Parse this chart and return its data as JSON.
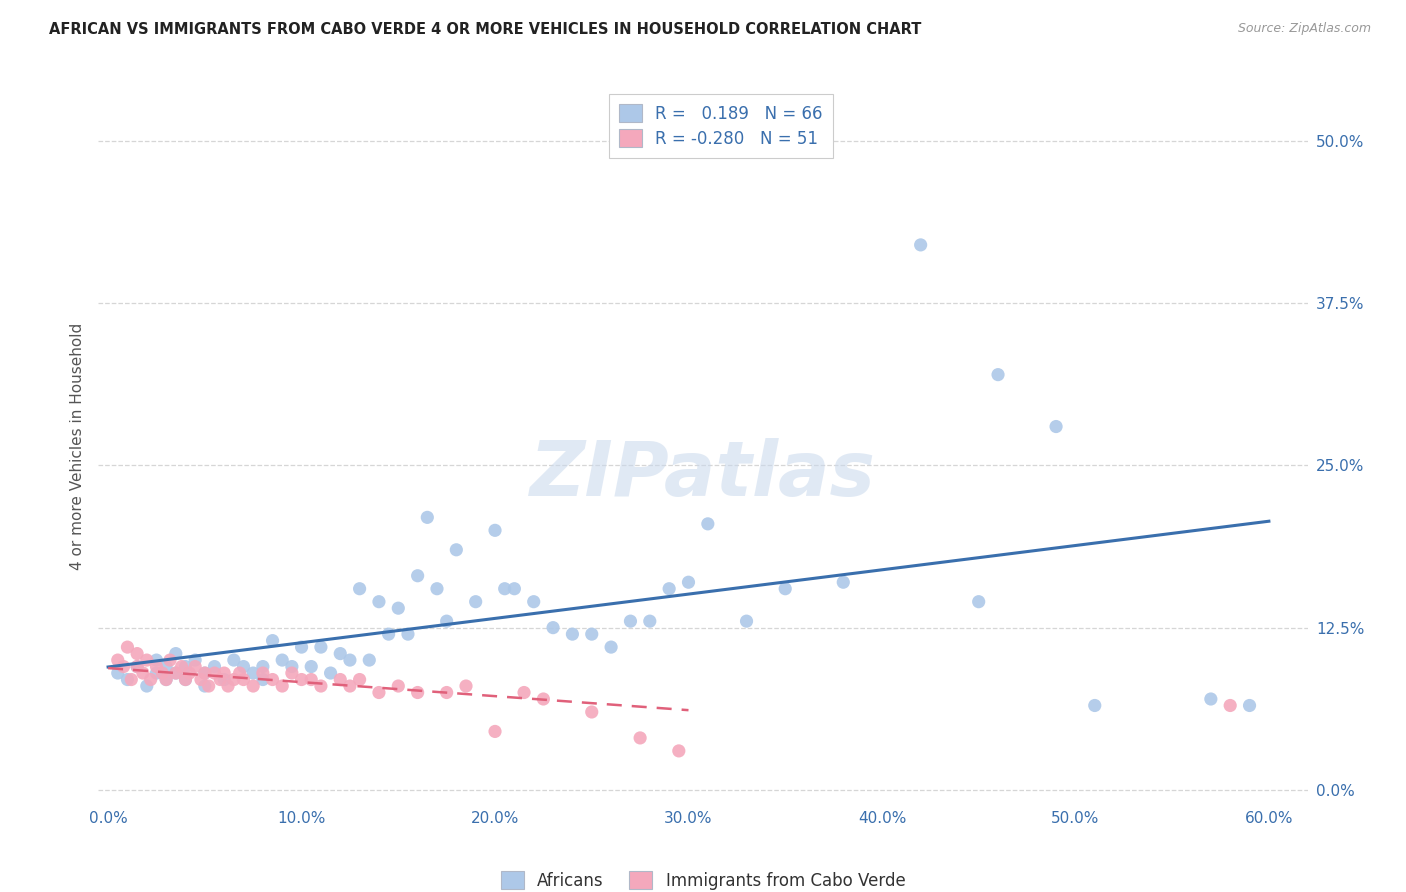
{
  "title": "AFRICAN VS IMMIGRANTS FROM CABO VERDE 4 OR MORE VEHICLES IN HOUSEHOLD CORRELATION CHART",
  "source": "Source: ZipAtlas.com",
  "ylabel": "4 or more Vehicles in Household",
  "xlabel_ticks": [
    "0.0%",
    "10.0%",
    "20.0%",
    "30.0%",
    "40.0%",
    "50.0%",
    "60.0%"
  ],
  "xlabel_vals": [
    0.0,
    0.1,
    0.2,
    0.3,
    0.4,
    0.5,
    0.6
  ],
  "ylabel_ticks": [
    "0.0%",
    "12.5%",
    "25.0%",
    "37.5%",
    "50.0%"
  ],
  "ylabel_vals": [
    0.0,
    0.125,
    0.25,
    0.375,
    0.5
  ],
  "african_R": 0.189,
  "african_N": 66,
  "cabo_verde_R": -0.28,
  "cabo_verde_N": 51,
  "legend_labels": [
    "Africans",
    "Immigrants from Cabo Verde"
  ],
  "african_color": "#adc8e8",
  "cabo_verde_color": "#f4a8bc",
  "african_line_color": "#3a6fad",
  "cabo_verde_line_color": "#e0607a",
  "watermark": "ZIPatlas",
  "african_x": [
    0.005,
    0.01,
    0.015,
    0.02,
    0.025,
    0.025,
    0.03,
    0.03,
    0.035,
    0.035,
    0.04,
    0.04,
    0.045,
    0.05,
    0.05,
    0.055,
    0.06,
    0.065,
    0.07,
    0.075,
    0.08,
    0.08,
    0.085,
    0.09,
    0.095,
    0.1,
    0.105,
    0.11,
    0.115,
    0.12,
    0.125,
    0.13,
    0.135,
    0.14,
    0.145,
    0.15,
    0.155,
    0.16,
    0.165,
    0.17,
    0.175,
    0.18,
    0.19,
    0.2,
    0.205,
    0.21,
    0.22,
    0.23,
    0.24,
    0.25,
    0.26,
    0.27,
    0.28,
    0.29,
    0.3,
    0.31,
    0.33,
    0.35,
    0.38,
    0.42,
    0.45,
    0.46,
    0.49,
    0.51,
    0.57,
    0.59
  ],
  "african_y": [
    0.09,
    0.085,
    0.095,
    0.08,
    0.09,
    0.1,
    0.085,
    0.095,
    0.09,
    0.105,
    0.085,
    0.095,
    0.1,
    0.08,
    0.09,
    0.095,
    0.085,
    0.1,
    0.095,
    0.09,
    0.095,
    0.085,
    0.115,
    0.1,
    0.095,
    0.11,
    0.095,
    0.11,
    0.09,
    0.105,
    0.1,
    0.155,
    0.1,
    0.145,
    0.12,
    0.14,
    0.12,
    0.165,
    0.21,
    0.155,
    0.13,
    0.185,
    0.145,
    0.2,
    0.155,
    0.155,
    0.145,
    0.125,
    0.12,
    0.12,
    0.11,
    0.13,
    0.13,
    0.155,
    0.16,
    0.205,
    0.13,
    0.155,
    0.16,
    0.42,
    0.145,
    0.32,
    0.28,
    0.065,
    0.07,
    0.065
  ],
  "cabo_verde_x": [
    0.005,
    0.008,
    0.01,
    0.012,
    0.015,
    0.015,
    0.018,
    0.02,
    0.022,
    0.025,
    0.028,
    0.03,
    0.032,
    0.035,
    0.038,
    0.04,
    0.042,
    0.045,
    0.048,
    0.05,
    0.052,
    0.055,
    0.058,
    0.06,
    0.062,
    0.065,
    0.068,
    0.07,
    0.075,
    0.08,
    0.085,
    0.09,
    0.095,
    0.1,
    0.105,
    0.11,
    0.12,
    0.125,
    0.13,
    0.14,
    0.15,
    0.16,
    0.175,
    0.185,
    0.2,
    0.215,
    0.225,
    0.25,
    0.275,
    0.295,
    0.58
  ],
  "cabo_verde_y": [
    0.1,
    0.095,
    0.11,
    0.085,
    0.095,
    0.105,
    0.09,
    0.1,
    0.085,
    0.095,
    0.09,
    0.085,
    0.1,
    0.09,
    0.095,
    0.085,
    0.09,
    0.095,
    0.085,
    0.09,
    0.08,
    0.09,
    0.085,
    0.09,
    0.08,
    0.085,
    0.09,
    0.085,
    0.08,
    0.09,
    0.085,
    0.08,
    0.09,
    0.085,
    0.085,
    0.08,
    0.085,
    0.08,
    0.085,
    0.075,
    0.08,
    0.075,
    0.075,
    0.08,
    0.045,
    0.075,
    0.07,
    0.06,
    0.04,
    0.03,
    0.065
  ],
  "xlim": [
    -0.005,
    0.62
  ],
  "ylim": [
    -0.01,
    0.54
  ],
  "cabo_verde_line_xmax": 0.3,
  "title_fontsize": 10.5,
  "tick_fontsize": 11,
  "ylabel_fontsize": 11,
  "source_fontsize": 9,
  "watermark_fontsize": 55,
  "scatter_size": 90,
  "bg_color": "#ffffff",
  "grid_color": "#cccccc",
  "legend_text_color": "#3a6fad",
  "legend_patch_edge_color": "#b0b8c8",
  "tick_color": "#3a6fad",
  "ylabel_color": "#555555",
  "title_color": "#222222",
  "source_color": "#999999"
}
